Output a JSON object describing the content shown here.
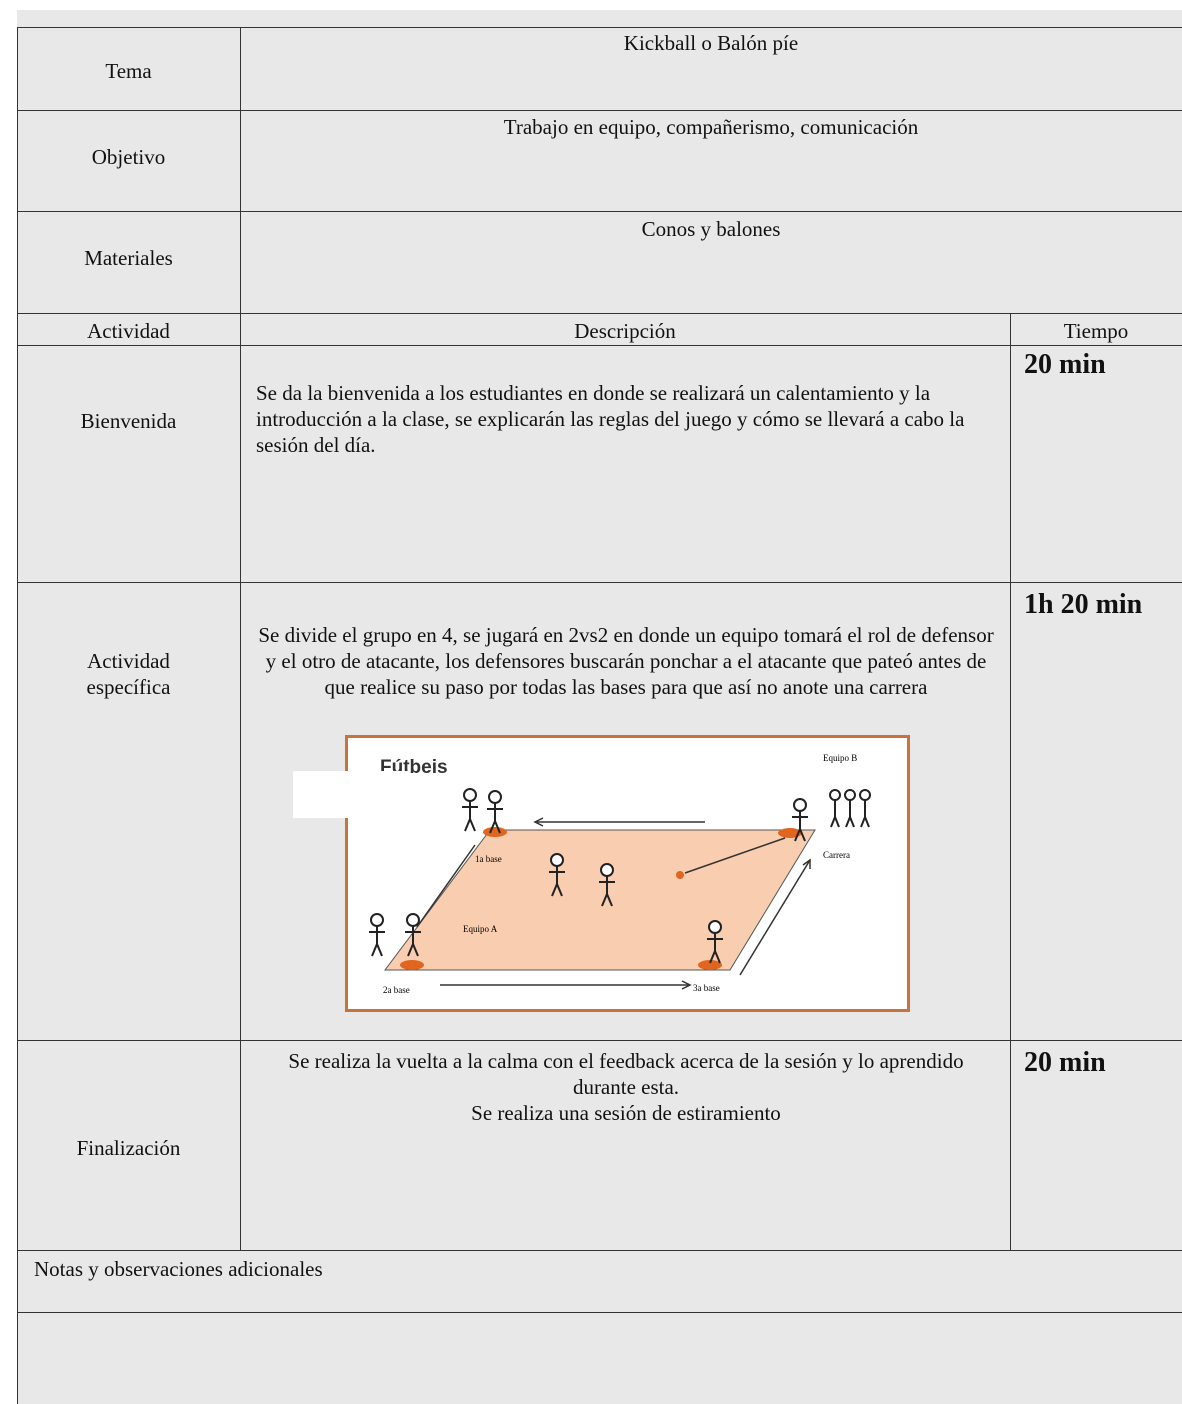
{
  "header": {
    "rows": [
      {
        "label": "Tema",
        "value": "Kickball o Balón píe"
      },
      {
        "label": "Objetivo",
        "value": "Trabajo en equipo, compañerismo, comunicación"
      },
      {
        "label": "Materiales",
        "value": "Conos y balones"
      }
    ]
  },
  "table": {
    "columns": [
      "Actividad",
      "Descripción",
      "Tiempo"
    ],
    "rows": [
      {
        "activity": "Bienvenida",
        "description": [
          "Se da la bienvenida a los estudiantes en donde se realizará un calentamiento y la introducción a la clase, se explicarán las reglas del juego y cómo se llevará a cabo la sesión del día."
        ],
        "time": "20 min"
      },
      {
        "activity": "Actividad específica",
        "description": [
          "Se divide el grupo en 4, se jugará en 2vs2 en donde un equipo tomará el rol de defensor y el otro de atacante, los defensores buscarán ponchar a el atacante que pateó antes de que realice su paso por todas las bases para que así no anote una carrera"
        ],
        "time": "1h 20 min"
      },
      {
        "activity": "Finalización",
        "description": [
          "Se realiza la vuelta a la calma con el feedback acerca de la sesión y lo aprendido durante esta.",
          "Se realiza una sesión de estiramiento"
        ],
        "time": "20 min"
      }
    ]
  },
  "figure": {
    "title": "Fútbeis",
    "labels": [
      "Equipo B",
      "1a base",
      "Carrera",
      "Equipo A",
      "2a base",
      "3a base"
    ]
  },
  "notes": {
    "label": "Notas y observaciones adicionales"
  }
}
